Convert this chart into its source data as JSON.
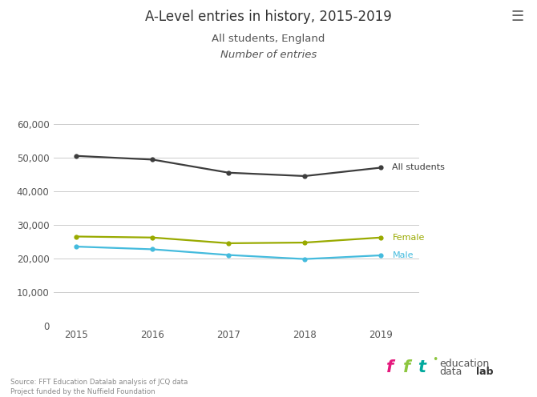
{
  "title": "A-Level entries in history, 2015-2019",
  "subtitle1": "All students, England",
  "subtitle2": "Number of entries",
  "years": [
    2015,
    2016,
    2017,
    2018,
    2019
  ],
  "all_students": [
    50500,
    49400,
    45500,
    44500,
    47000
  ],
  "female": [
    26500,
    26200,
    24500,
    24700,
    26200
  ],
  "male": [
    23500,
    22700,
    21000,
    19800,
    20900
  ],
  "color_all": "#3d3d3d",
  "color_female": "#99aa00",
  "color_male": "#44bbdd",
  "ylim": [
    0,
    65000
  ],
  "yticks": [
    0,
    10000,
    20000,
    30000,
    40000,
    50000,
    60000
  ],
  "background_color": "#ffffff",
  "source_text": "Source: FFT Education Datalab analysis of JCQ data\nProject funded by the Nuffield Foundation",
  "hamburger_color": "#666666",
  "label_all": "All students",
  "label_female": "Female",
  "label_male": "Male"
}
